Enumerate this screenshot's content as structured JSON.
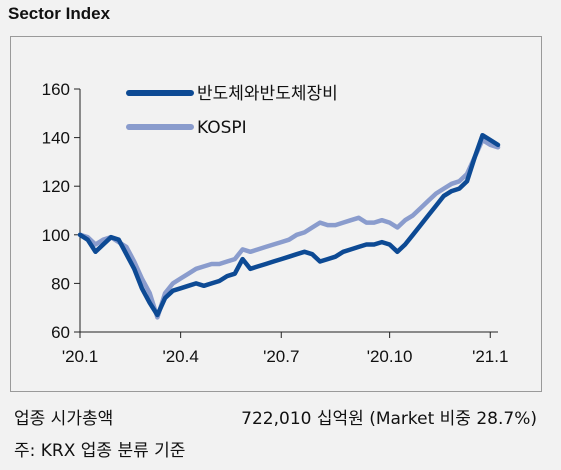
{
  "title": "Sector Index",
  "chart_data": {
    "type": "line",
    "ylim": [
      60,
      160
    ],
    "yticks": [
      60,
      80,
      100,
      120,
      140,
      160
    ],
    "xlim": [
      0,
      54
    ],
    "xticks": [
      {
        "pos": 0,
        "label": "'20.1"
      },
      {
        "pos": 13,
        "label": "'20.4"
      },
      {
        "pos": 26,
        "label": "'20.7"
      },
      {
        "pos": 40,
        "label": "'20.10"
      },
      {
        "pos": 53,
        "label": "'21.1"
      }
    ],
    "grid": false,
    "legend_position": "top-left",
    "series": [
      {
        "name": "반도체와반도체장비",
        "color": "#0d4a94",
        "values": [
          100,
          98,
          93,
          96,
          99,
          98,
          92,
          86,
          78,
          72,
          67,
          74,
          77,
          78,
          79,
          80,
          79,
          80,
          81,
          83,
          84,
          90,
          86,
          87,
          88,
          89,
          90,
          91,
          92,
          93,
          92,
          89,
          90,
          91,
          93,
          94,
          95,
          96,
          96,
          97,
          96,
          93,
          96,
          100,
          104,
          108,
          112,
          116,
          118,
          119,
          122,
          132,
          141,
          139,
          137
        ]
      },
      {
        "name": "KOSPI",
        "color": "#8a9ccd",
        "values": [
          100,
          99,
          96,
          98,
          99,
          97,
          95,
          89,
          82,
          76,
          66,
          76,
          80,
          82,
          84,
          86,
          87,
          88,
          88,
          89,
          90,
          94,
          93,
          94,
          95,
          96,
          97,
          98,
          100,
          101,
          103,
          105,
          104,
          104,
          105,
          106,
          107,
          105,
          105,
          106,
          105,
          103,
          106,
          108,
          111,
          114,
          117,
          119,
          121,
          122,
          125,
          132,
          139,
          137,
          136
        ]
      }
    ]
  },
  "footer": {
    "left_line1": "업종 시가총액",
    "right_line1": "722,010 십억원 (Market 비중 28.7%)",
    "line2": "주: KRX 업종 분류 기준"
  }
}
